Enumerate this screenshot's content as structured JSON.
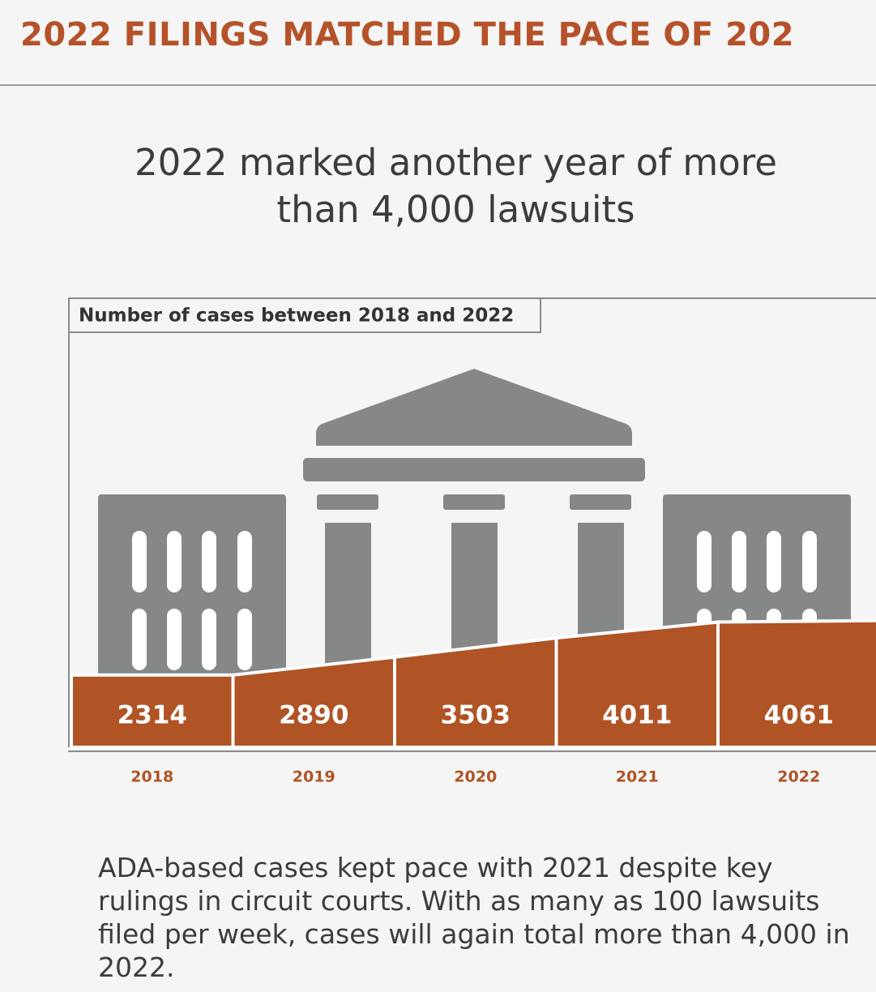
{
  "chart_data": {
    "type": "bar",
    "title": "2022 FILINGS MATCHED THE PACE OF 202",
    "subtitle": "2022 marked another year of more than 4,000 lawsuits",
    "label": "Number of cases between 2018 and 2022",
    "categories": [
      "2018",
      "2019",
      "2020",
      "2021",
      "2022"
    ],
    "values": [
      2314,
      2890,
      3503,
      4011,
      4061
    ],
    "color": "#b05325",
    "note": "ADA-based cases kept pace with 2021 despite key rulings in circuit courts. With as many as 100 lawsuits filed per week, cases will again total more than 4,000 in 2022."
  }
}
